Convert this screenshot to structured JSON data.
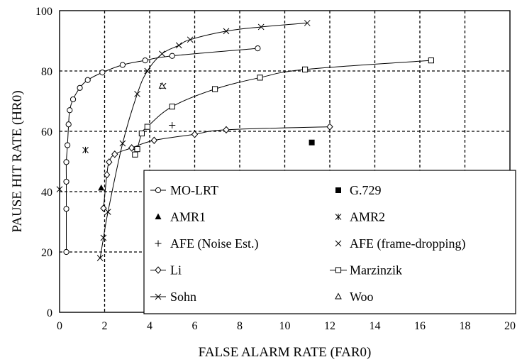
{
  "chart_data": {
    "type": "line",
    "xlabel": "FALSE ALARM RATE (FAR0)",
    "ylabel": "PAUSE HIT RATE (HR0)",
    "xlim": [
      0,
      20
    ],
    "ylim": [
      0,
      100
    ],
    "x_ticks": [
      "0",
      "2",
      "4",
      "6",
      "8",
      "10",
      "12",
      "14",
      "16",
      "18",
      "20"
    ],
    "y_ticks": [
      "0",
      "20",
      "40",
      "60",
      "80",
      "100"
    ],
    "grid": "dashed",
    "legend_position": "center-bottom",
    "series": [
      {
        "name": "MO-LRT",
        "marker": "circle",
        "line": true,
        "points": [
          [
            0.3,
            20
          ],
          [
            0.3,
            34.3
          ],
          [
            0.3,
            43.3
          ],
          [
            0.3,
            49.8
          ],
          [
            0.35,
            55.4
          ],
          [
            0.4,
            62.3
          ],
          [
            0.45,
            67
          ],
          [
            0.6,
            70.6
          ],
          [
            0.9,
            74.4
          ],
          [
            1.25,
            77
          ],
          [
            1.9,
            79.5
          ],
          [
            2.8,
            82
          ],
          [
            3.8,
            83.5
          ],
          [
            5.0,
            85
          ],
          [
            8.8,
            87.5
          ]
        ]
      },
      {
        "name": "G.729",
        "marker": "filled-square",
        "line": false,
        "points": [
          [
            11.2,
            56.3
          ]
        ]
      },
      {
        "name": "AMR1",
        "marker": "filled-triangle",
        "line": false,
        "points": [
          [
            1.85,
            41.2
          ]
        ]
      },
      {
        "name": "AMR2",
        "marker": "asterisk",
        "line": false,
        "points": [
          [
            1.15,
            53.8
          ],
          [
            0,
            40.8
          ]
        ]
      },
      {
        "name": "AFE (Noise Est.)",
        "marker": "plus",
        "line": false,
        "points": [
          [
            5.0,
            62
          ],
          [
            3.35,
            54
          ]
        ]
      },
      {
        "name": "AFE (frame-dropping)",
        "marker": "x",
        "line": false,
        "points": [
          [
            4.6,
            75
          ]
        ]
      },
      {
        "name": "Li",
        "marker": "diamond",
        "line": true,
        "points": [
          [
            1.95,
            34.5
          ],
          [
            2.1,
            45.6
          ],
          [
            2.2,
            49.8
          ],
          [
            2.45,
            52.4
          ],
          [
            3.2,
            54.5
          ],
          [
            4.2,
            57
          ],
          [
            6.0,
            59
          ],
          [
            7.4,
            60.5
          ],
          [
            12.0,
            61.5
          ]
        ]
      },
      {
        "name": "Marzinzik",
        "marker": "square",
        "line": true,
        "points": [
          [
            3.35,
            52.3
          ],
          [
            3.45,
            54.1
          ],
          [
            3.65,
            59.3
          ],
          [
            3.9,
            61.5
          ],
          [
            5.0,
            68.2
          ],
          [
            6.9,
            74
          ],
          [
            8.9,
            77.8
          ],
          [
            10.9,
            80.5
          ],
          [
            16.5,
            83.5
          ]
        ]
      },
      {
        "name": "Sohn",
        "marker": "x",
        "line": true,
        "points": [
          [
            1.8,
            18
          ],
          [
            1.95,
            24.7
          ],
          [
            2.15,
            33.3
          ],
          [
            2.8,
            56
          ],
          [
            3.45,
            72.4
          ],
          [
            3.9,
            80
          ],
          [
            4.55,
            85.7
          ],
          [
            5.3,
            88.5
          ],
          [
            5.8,
            90.4
          ],
          [
            7.4,
            93.2
          ],
          [
            8.95,
            94.6
          ],
          [
            11.0,
            95.9
          ]
        ]
      },
      {
        "name": "Woo",
        "marker": "triangle",
        "line": false,
        "points": [
          [
            4.55,
            75
          ]
        ]
      }
    ],
    "legend": [
      {
        "label": "MO-LRT",
        "marker": "circle",
        "line": true
      },
      {
        "label": "G.729",
        "marker": "filled-square",
        "line": false
      },
      {
        "label": "AMR1",
        "marker": "filled-triangle",
        "line": false
      },
      {
        "label": "AMR2",
        "marker": "asterisk",
        "line": false
      },
      {
        "label": "AFE (Noise Est.)",
        "marker": "plus",
        "line": false
      },
      {
        "label": "AFE (frame-dropping)",
        "marker": "x",
        "line": false
      },
      {
        "label": "Li",
        "marker": "diamond",
        "line": true
      },
      {
        "label": "Marzinzik",
        "marker": "square",
        "line": true
      },
      {
        "label": "Sohn",
        "marker": "x",
        "line": true
      },
      {
        "label": "Woo",
        "marker": "triangle",
        "line": false
      }
    ]
  }
}
